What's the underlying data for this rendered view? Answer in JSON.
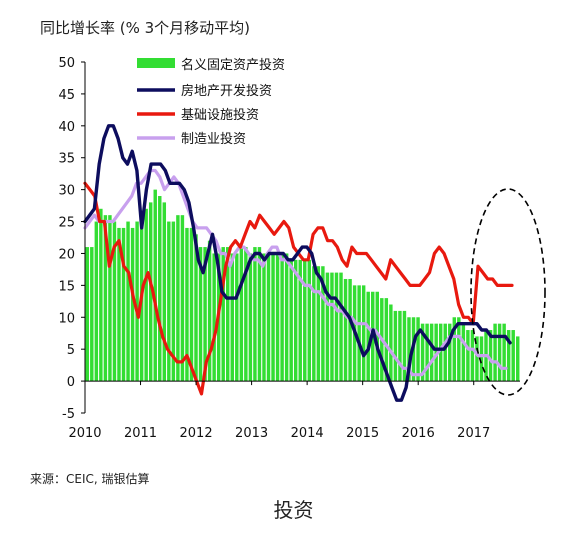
{
  "unit_label": "同比增长率 (% 3个月移动平均)",
  "source": "来源：CEIC, 瑞银估算",
  "caption": "投资",
  "chart_data": {
    "type": "bar+line",
    "ylim": [
      -5,
      50
    ],
    "y_ticks": [
      "-5",
      "0",
      "5",
      "10",
      "15",
      "20",
      "25",
      "30",
      "35",
      "40",
      "45",
      "50"
    ],
    "x_ticks": [
      "2010",
      "2011",
      "2012",
      "2013",
      "2014",
      "2015",
      "2016",
      "2017"
    ],
    "x_range": [
      "2010-01",
      "2017-11"
    ],
    "legend_position": "top-center",
    "grid": false,
    "annotation": "dashed ellipse highlighting 2017",
    "colors": {
      "nominal_fixed_asset": "#33dd33",
      "real_estate": "#0d0d5e",
      "infrastructure": "#e8190f",
      "manufacturing": "#c8a0ee"
    },
    "series": [
      {
        "name": "名义固定资产投资",
        "type": "bar",
        "values": [
          21,
          21,
          25,
          27,
          26,
          26,
          25,
          24,
          24,
          25,
          24,
          25,
          25,
          27,
          28,
          30,
          29,
          28,
          25,
          25,
          26,
          26,
          24,
          24,
          23,
          21,
          21,
          22,
          20,
          20,
          21,
          21,
          20,
          20,
          21,
          21,
          20,
          21,
          21,
          20,
          20,
          20,
          20,
          20,
          20,
          19,
          19,
          19,
          19,
          19,
          18,
          18,
          18,
          17,
          17,
          17,
          17,
          16,
          16,
          15,
          15,
          15,
          14,
          14,
          14,
          13,
          13,
          12,
          11,
          11,
          11,
          10,
          10,
          10,
          9,
          9,
          9,
          9,
          9,
          9,
          9,
          10,
          10,
          9,
          8,
          8,
          7,
          7,
          8,
          8,
          9,
          9,
          9,
          8,
          8,
          7
        ]
      },
      {
        "name": "房地产开发投资",
        "type": "line",
        "values": [
          25,
          26,
          27,
          34,
          38,
          40,
          40,
          38,
          35,
          34,
          36,
          33,
          24,
          30,
          34,
          34,
          34,
          33,
          31,
          31,
          31,
          30,
          28,
          24,
          19,
          17,
          20,
          23,
          19,
          14,
          13,
          13,
          13,
          15,
          17,
          19,
          20,
          20,
          19,
          20,
          20,
          20,
          20,
          19,
          19,
          20,
          21,
          21,
          20,
          17,
          16,
          14,
          13,
          13,
          12,
          11,
          10,
          8,
          6,
          4,
          5,
          8,
          5,
          3,
          1,
          -1,
          -3,
          -3,
          -1,
          4,
          7,
          8,
          7,
          6,
          5,
          5,
          5,
          6,
          8,
          9,
          9,
          9,
          9,
          9,
          8,
          8,
          7,
          7,
          7,
          7,
          6
        ]
      },
      {
        "name": "基础设施投资",
        "type": "line",
        "values": [
          31,
          30,
          29,
          25,
          25,
          18,
          21,
          22,
          18,
          17,
          13,
          10,
          15,
          17,
          14,
          10,
          7,
          5,
          4,
          3,
          3,
          4,
          2,
          0,
          -2,
          3,
          5,
          8,
          13,
          18,
          21,
          22,
          21,
          23,
          25,
          24,
          26,
          25,
          24,
          23,
          24,
          25,
          24,
          21,
          20,
          19,
          19,
          23,
          24,
          24,
          22,
          22,
          21,
          19,
          18,
          21,
          20,
          20,
          20,
          19,
          18,
          17,
          16,
          19,
          18,
          17,
          16,
          15,
          15,
          15,
          16,
          17,
          20,
          21,
          20,
          18,
          16,
          12,
          10,
          10,
          9,
          18,
          17,
          16,
          16,
          15,
          15,
          15,
          15
        ]
      },
      {
        "name": "制造业投资",
        "type": "line",
        "values": [
          24,
          25,
          26,
          25,
          25,
          25,
          25,
          26,
          27,
          28,
          29,
          31,
          31,
          32,
          33,
          33,
          32,
          30,
          31,
          32,
          31,
          29,
          27,
          25,
          24,
          24,
          24,
          23,
          22,
          20,
          20,
          18,
          20,
          21,
          21,
          20,
          19,
          19,
          18,
          20,
          21,
          21,
          19,
          19,
          18,
          17,
          16,
          15,
          15,
          14,
          14,
          13,
          12,
          12,
          11,
          11,
          10,
          10,
          9,
          9,
          9,
          8,
          8,
          7,
          6,
          5,
          4,
          3,
          2,
          2,
          1,
          1,
          1,
          2,
          3,
          4,
          5,
          6,
          7,
          7,
          7,
          6,
          5,
          5,
          4,
          4,
          4,
          3,
          3,
          2,
          2
        ]
      }
    ]
  }
}
